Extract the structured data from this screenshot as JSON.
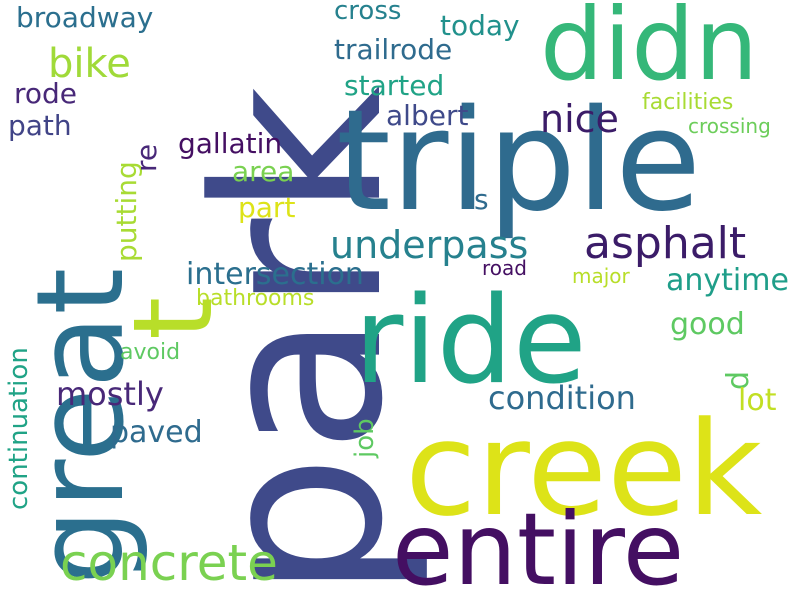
{
  "words": {
    "park": "park",
    "great": "great",
    "triple": "triple",
    "creek": "creek",
    "ride": "ride",
    "didn": "didn",
    "entire": "entire",
    "t": "t",
    "concrete": "concrete",
    "asphalt": "asphalt",
    "underpass": "underpass",
    "nice": "nice",
    "bike": "bike",
    "intersection": "intersection",
    "broadway": "broadway",
    "cross": "cross",
    "today": "today",
    "trailrode": "trailrode",
    "started": "started",
    "albert": "albert",
    "rode": "rode",
    "path": "path",
    "gallatin": "gallatin",
    "area": "area",
    "part": "part",
    "s": "s",
    "facilities": "facilities",
    "crossing": "crossing",
    "road": "road",
    "major": "major",
    "anytime": "anytime",
    "bathrooms": "bathrooms",
    "good": "good",
    "avoid": "avoid",
    "mostly": "mostly",
    "condition": "condition",
    "lot": "lot",
    "d": "d",
    "paved": "paved",
    "putting": "putting",
    "re": "re",
    "continuation": "continuation",
    "job": "job"
  },
  "colors": {
    "background": "#ffffff",
    "palette": [
      "#440f62",
      "#482878",
      "#3f4a8a",
      "#2f6b8e",
      "#26818e",
      "#21918c",
      "#20a386",
      "#35b779",
      "#5ec962",
      "#7ad151",
      "#a8db34",
      "#dde318"
    ]
  }
}
